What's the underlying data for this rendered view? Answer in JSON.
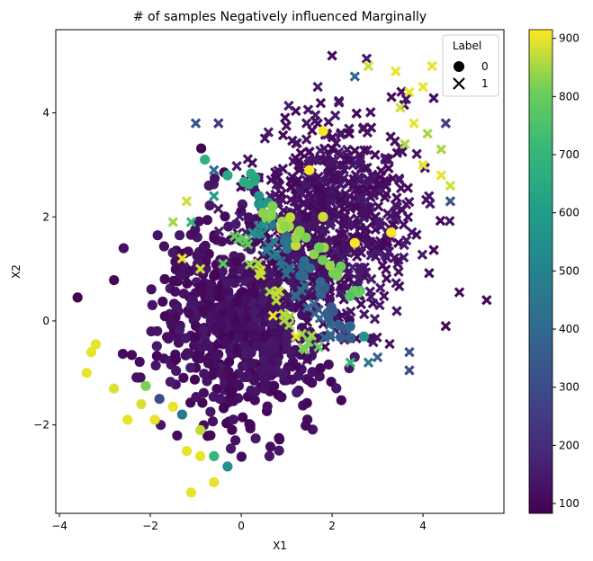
{
  "chart_data": {
    "type": "scatter",
    "title": "# of samples Negatively influenced Marginally",
    "xlabel": "X1",
    "ylabel": "X2",
    "xlim": [
      -4.08,
      5.78
    ],
    "ylim": [
      -3.7,
      5.6
    ],
    "xticks": [
      -4,
      -2,
      0,
      2,
      4
    ],
    "yticks": [
      -2,
      0,
      2,
      4
    ],
    "grid": false,
    "colorbar": {
      "colormap": "viridis",
      "range": [
        83,
        915
      ],
      "ticks": [
        100,
        200,
        300,
        400,
        500,
        600,
        700,
        800,
        900
      ]
    },
    "legend": {
      "title": "Label",
      "placement": "top-right",
      "entries": [
        {
          "label": "0",
          "marker": "circle"
        },
        {
          "label": "1",
          "marker": "x"
        }
      ]
    },
    "clusters": [
      {
        "label": "0",
        "marker": "circle",
        "center": [
          0,
          0
        ],
        "spread": [
          0.9,
          0.95
        ],
        "count": 700,
        "value": 90
      },
      {
        "label": "1",
        "marker": "x",
        "center": [
          2,
          2
        ],
        "spread": [
          0.9,
          0.95
        ],
        "count": 700,
        "value": 95
      }
    ],
    "boundary": {
      "description": "high-influence samples lie along the line from (0, 3) to (3, -1)",
      "points": [
        {
          "x": 0.2,
          "y": 2.7,
          "value": 650,
          "label": "0"
        },
        {
          "x": 0.5,
          "y": 2.3,
          "value": 560,
          "label": "0"
        },
        {
          "x": 0.8,
          "y": 1.9,
          "value": 470,
          "label": "0"
        },
        {
          "x": 1.1,
          "y": 1.5,
          "value": 420,
          "label": "0"
        },
        {
          "x": 1.4,
          "y": 1.0,
          "value": 400,
          "label": "0"
        },
        {
          "x": 1.7,
          "y": 0.6,
          "value": 380,
          "label": "0"
        },
        {
          "x": 2.0,
          "y": 0.2,
          "value": 360,
          "label": "0"
        },
        {
          "x": 2.3,
          "y": -0.2,
          "value": 360,
          "label": "0"
        },
        {
          "x": 0.6,
          "y": 2.1,
          "value": 850,
          "label": "0"
        },
        {
          "x": 1.0,
          "y": 1.9,
          "value": 860,
          "label": "0"
        },
        {
          "x": 1.3,
          "y": 1.6,
          "value": 850,
          "label": "0"
        },
        {
          "x": 1.7,
          "y": 1.3,
          "value": 820,
          "label": "0"
        },
        {
          "x": 2.1,
          "y": 1.0,
          "value": 810,
          "label": "0"
        },
        {
          "x": 2.5,
          "y": 0.5,
          "value": 780,
          "label": "0"
        },
        {
          "x": 0.4,
          "y": 1.8,
          "value": 560,
          "label": "1"
        },
        {
          "x": 0.7,
          "y": 1.4,
          "value": 480,
          "label": "1"
        },
        {
          "x": 1.0,
          "y": 1.0,
          "value": 420,
          "label": "1"
        },
        {
          "x": 1.3,
          "y": 0.6,
          "value": 400,
          "label": "1"
        },
        {
          "x": 1.6,
          "y": 0.2,
          "value": 380,
          "label": "1"
        },
        {
          "x": 1.9,
          "y": -0.2,
          "value": 370,
          "label": "1"
        },
        {
          "x": 0.0,
          "y": 1.5,
          "value": 780,
          "label": "1"
        },
        {
          "x": 0.3,
          "y": 1.0,
          "value": 860,
          "label": "1"
        },
        {
          "x": 0.7,
          "y": 0.5,
          "value": 880,
          "label": "1"
        },
        {
          "x": 1.0,
          "y": 0.0,
          "value": 860,
          "label": "1"
        },
        {
          "x": 1.4,
          "y": -0.4,
          "value": 820,
          "label": "1"
        }
      ]
    },
    "outliers": [
      {
        "x": -3.6,
        "y": 0.45,
        "value": 90,
        "label": "0"
      },
      {
        "x": -3.2,
        "y": -0.45,
        "value": 900,
        "label": "0"
      },
      {
        "x": -3.4,
        "y": -1.0,
        "value": 900,
        "label": "0"
      },
      {
        "x": -3.3,
        "y": -0.6,
        "value": 900,
        "label": "0"
      },
      {
        "x": -2.8,
        "y": -1.3,
        "value": 890,
        "label": "0"
      },
      {
        "x": -2.5,
        "y": -1.9,
        "value": 900,
        "label": "0"
      },
      {
        "x": -2.2,
        "y": -1.6,
        "value": 890,
        "label": "0"
      },
      {
        "x": -1.9,
        "y": -1.9,
        "value": 900,
        "label": "0"
      },
      {
        "x": -2.1,
        "y": -1.25,
        "value": 820,
        "label": "0"
      },
      {
        "x": -1.5,
        "y": -1.65,
        "value": 900,
        "label": "0"
      },
      {
        "x": -1.1,
        "y": -3.3,
        "value": 900,
        "label": "0"
      },
      {
        "x": -0.9,
        "y": -2.6,
        "value": 900,
        "label": "0"
      },
      {
        "x": -0.6,
        "y": -3.1,
        "value": 900,
        "label": "0"
      },
      {
        "x": -0.9,
        "y": -2.1,
        "value": 870,
        "label": "0"
      },
      {
        "x": -1.2,
        "y": -2.5,
        "value": 900,
        "label": "0"
      },
      {
        "x": -0.6,
        "y": -2.6,
        "value": 700,
        "label": "0"
      },
      {
        "x": -0.3,
        "y": -2.8,
        "value": 560,
        "label": "0"
      },
      {
        "x": -1.3,
        "y": -1.8,
        "value": 460,
        "label": "0"
      },
      {
        "x": -1.8,
        "y": -1.5,
        "value": 300,
        "label": "0"
      },
      {
        "x": -0.8,
        "y": 3.1,
        "value": 680,
        "label": "0"
      },
      {
        "x": -0.3,
        "y": 2.8,
        "value": 640,
        "label": "0"
      },
      {
        "x": 1.8,
        "y": 3.65,
        "value": 910,
        "label": "0"
      },
      {
        "x": 1.5,
        "y": 2.9,
        "value": 910,
        "label": "0"
      },
      {
        "x": 3.3,
        "y": 1.7,
        "value": 910,
        "label": "0"
      },
      {
        "x": 2.5,
        "y": 1.5,
        "value": 910,
        "label": "0"
      },
      {
        "x": 1.8,
        "y": 2.0,
        "value": 880,
        "label": "0"
      },
      {
        "x": 2.7,
        "y": -0.3,
        "value": 560,
        "label": "0"
      },
      {
        "x": 2.0,
        "y": 5.1,
        "value": 110,
        "label": "1"
      },
      {
        "x": 2.8,
        "y": 4.9,
        "value": 880,
        "label": "1"
      },
      {
        "x": 3.4,
        "y": 4.8,
        "value": 900,
        "label": "1"
      },
      {
        "x": 4.2,
        "y": 4.9,
        "value": 900,
        "label": "1"
      },
      {
        "x": 3.7,
        "y": 4.4,
        "value": 900,
        "label": "1"
      },
      {
        "x": 4.0,
        "y": 4.5,
        "value": 900,
        "label": "1"
      },
      {
        "x": 3.5,
        "y": 4.1,
        "value": 880,
        "label": "1"
      },
      {
        "x": 3.8,
        "y": 3.8,
        "value": 900,
        "label": "1"
      },
      {
        "x": 4.1,
        "y": 3.6,
        "value": 850,
        "label": "1"
      },
      {
        "x": 4.4,
        "y": 3.3,
        "value": 850,
        "label": "1"
      },
      {
        "x": 3.6,
        "y": 3.4,
        "value": 860,
        "label": "1"
      },
      {
        "x": 4.0,
        "y": 3.0,
        "value": 900,
        "label": "1"
      },
      {
        "x": 4.4,
        "y": 2.8,
        "value": 900,
        "label": "1"
      },
      {
        "x": 4.6,
        "y": 2.6,
        "value": 880,
        "label": "1"
      },
      {
        "x": 4.5,
        "y": 3.8,
        "value": 260,
        "label": "1"
      },
      {
        "x": 2.5,
        "y": 4.7,
        "value": 400,
        "label": "1"
      },
      {
        "x": -1.0,
        "y": 3.8,
        "value": 330,
        "label": "1"
      },
      {
        "x": -0.5,
        "y": 3.8,
        "value": 230,
        "label": "1"
      },
      {
        "x": -0.6,
        "y": 2.9,
        "value": 420,
        "label": "1"
      },
      {
        "x": -1.5,
        "y": 1.9,
        "value": 850,
        "label": "1"
      },
      {
        "x": -1.2,
        "y": 2.3,
        "value": 880,
        "label": "1"
      },
      {
        "x": -1.1,
        "y": 1.9,
        "value": 700,
        "label": "1"
      },
      {
        "x": -1.3,
        "y": 1.2,
        "value": 900,
        "label": "1"
      },
      {
        "x": -0.9,
        "y": 1.0,
        "value": 880,
        "label": "1"
      },
      {
        "x": -0.4,
        "y": 1.1,
        "value": 780,
        "label": "1"
      },
      {
        "x": -0.6,
        "y": 2.4,
        "value": 600,
        "label": "1"
      },
      {
        "x": 0.7,
        "y": 0.1,
        "value": 900,
        "label": "1"
      },
      {
        "x": 1.2,
        "y": -0.3,
        "value": 900,
        "label": "1"
      },
      {
        "x": 1.7,
        "y": -0.5,
        "value": 800,
        "label": "1"
      },
      {
        "x": 2.4,
        "y": -0.8,
        "value": 700,
        "label": "1"
      },
      {
        "x": 2.8,
        "y": -0.8,
        "value": 460,
        "label": "1"
      },
      {
        "x": 3.0,
        "y": -0.7,
        "value": 370,
        "label": "1"
      },
      {
        "x": 3.7,
        "y": -0.95,
        "value": 300,
        "label": "1"
      },
      {
        "x": 3.7,
        "y": -0.6,
        "value": 320,
        "label": "1"
      },
      {
        "x": 4.6,
        "y": 2.3,
        "value": 330,
        "label": "1"
      },
      {
        "x": 4.8,
        "y": 0.55,
        "value": 110,
        "label": "1"
      },
      {
        "x": 5.4,
        "y": 0.4,
        "value": 100,
        "label": "1"
      },
      {
        "x": 4.5,
        "y": -0.1,
        "value": 100,
        "label": "1"
      }
    ]
  }
}
